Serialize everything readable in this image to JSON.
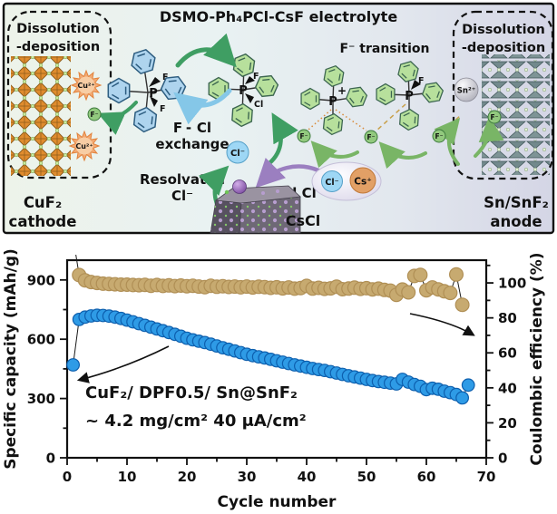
{
  "panel": {
    "title": "DSMO-Ph₄PCl-CsF electrolyte",
    "left_box": {
      "line1": "Dissolution",
      "line2": "-deposition"
    },
    "right_box": {
      "line1": "Dissolution",
      "line2": "-deposition"
    },
    "cathode_label": {
      "line1": "CuF₂",
      "line2": "cathode",
      "color": "#e8941c"
    },
    "anode_label": {
      "line1": "Sn/SnF₂",
      "line2": "anode",
      "color": "#9aa2a8"
    },
    "ions": {
      "cu": "Cu²⁺",
      "f": "F⁻",
      "cl": "Cl⁻",
      "cs": "Cs⁺",
      "sn": "Sn²⁺"
    },
    "atoms": {
      "p": "P",
      "plus": "+",
      "f": "F",
      "cl": "Cl"
    },
    "exchange": {
      "f": "F",
      "dash": "-",
      "cl": "Cl",
      "word": "exchange",
      "f_color": "#2faa4a",
      "cl_color": "#4a9fd0"
    },
    "f_transition": "F⁻ transition",
    "resolvated": {
      "line1": "Resolvated",
      "line2": "Cl⁻"
    },
    "solid_cl": "Solid Cl",
    "cscl": "CsCl",
    "colors": {
      "crystal_cuf2": "#e08c2e",
      "crystal_snf2": "#72898c",
      "cscl_purple": "#7a4fa0",
      "arrow_green": "#3f9e63",
      "arrow_lightgreen": "#79b566",
      "arrow_blue": "#85c7e8",
      "arrow_purple": "#9b7fc0"
    }
  },
  "chart_data": {
    "type": "scatter-line",
    "xlabel": "Cycle number",
    "ylabel_left": "Specific capacity (mAh/g)",
    "ylabel_right": "Coulombic efficiency (%)",
    "x_range": [
      0,
      70
    ],
    "left_range": [
      0,
      1000
    ],
    "right_range": [
      0,
      113
    ],
    "x_ticks": [
      0,
      10,
      20,
      30,
      40,
      50,
      60,
      70
    ],
    "x_minor": [
      5,
      15,
      25,
      35,
      45,
      55,
      65
    ],
    "left_ticks": [
      0,
      300,
      600,
      900
    ],
    "left_minor": [
      150,
      450,
      750
    ],
    "right_ticks": [
      0,
      20,
      40,
      60,
      80,
      100
    ],
    "right_minor": [
      10,
      30,
      50,
      70,
      90,
      110
    ],
    "grid": false,
    "annotation1": "CuF₂/ DPF0.5/ Sn@SnF₂",
    "annotation2": "~ 4.2 mg/cm² 40 μA/cm²",
    "series": [
      {
        "name": "Specific capacity",
        "axis": "left",
        "x_start": 1,
        "x_step": 1,
        "marker_color": "#2e9be6",
        "marker_edge": "#0d5fae",
        "line_color": "#1a1a1a",
        "marker_r": 6.8,
        "values": [
          470,
          700,
          712,
          718,
          721,
          720,
          717,
          712,
          705,
          697,
          688,
          679,
          670,
          661,
          652,
          643,
          634,
          625,
          615,
          605,
          597,
          590,
          583,
          575,
          566,
          557,
          549,
          541,
          532,
          524,
          517,
          511,
          505,
          498,
          491,
          484,
          477,
          470,
          464,
          458,
          452,
          447,
          442,
          436,
          429,
          422,
          415,
          409,
          403,
          397,
          391,
          386,
          382,
          378,
          374,
          397,
          383,
          371,
          362,
          345,
          352,
          347,
          337,
          330,
          320,
          303,
          368
        ]
      },
      {
        "name": "Coulombic efficiency",
        "axis": "right",
        "x_start": 1,
        "x_step": 1,
        "marker_color": "#c7aa70",
        "marker_edge": "#b08f55",
        "line_color": "#1a1a1a",
        "marker_r": 7.4,
        "values": [
          126,
          104.5,
          101.5,
          100.5,
          100,
          99.6,
          99.4,
          99.2,
          99,
          99,
          98.8,
          98.7,
          98.9,
          98.4,
          98.8,
          98.3,
          98.6,
          98.2,
          98.5,
          98.1,
          98.4,
          97.9,
          97.6,
          98.4,
          97.8,
          98.1,
          97.7,
          97.9,
          97.5,
          97.9,
          97.4,
          97.8,
          97.6,
          97.2,
          97.5,
          96.9,
          97.4,
          96.7,
          97.1,
          98.3,
          96.8,
          97.2,
          96.6,
          96.9,
          97.8,
          96.4,
          96.8,
          97.3,
          96.6,
          97,
          96.3,
          96.7,
          96,
          95.6,
          93.2,
          96.2,
          94.6,
          104,
          104.6,
          95.8,
          97.4,
          96.3,
          95.2,
          94.3,
          104.8,
          87.5
        ]
      }
    ]
  }
}
